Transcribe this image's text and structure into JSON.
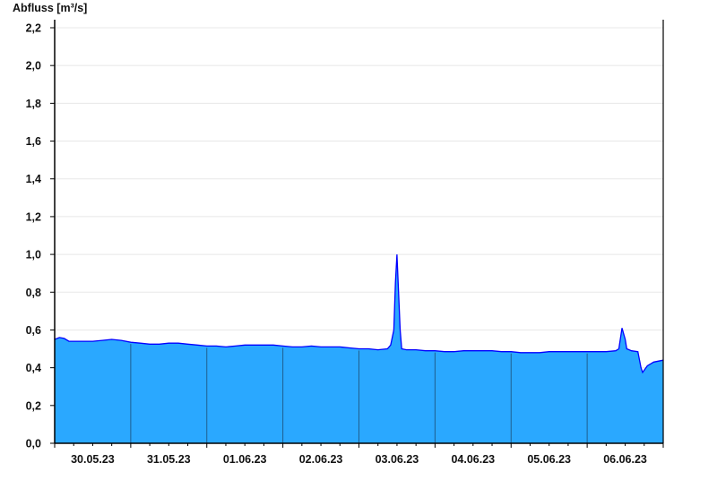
{
  "chart_data": {
    "type": "area",
    "ylabel": "Abfluss [m³/s]",
    "xlabel": "",
    "ylim": [
      0,
      2.2
    ],
    "yticks": [
      "0,0",
      "0,2",
      "0,4",
      "0,6",
      "0,8",
      "1,0",
      "1,2",
      "1,4",
      "1,6",
      "1,8",
      "2,0",
      "2,2"
    ],
    "xlim": [
      "30.05.23 00:00",
      "07.06.23 00:00"
    ],
    "xtick_labels": [
      "30.05.23",
      "31.05.23",
      "01.06.23",
      "02.06.23",
      "03.06.23",
      "04.06.23",
      "05.06.23",
      "06.06.23"
    ],
    "grid": true,
    "fill_color": "#2aa8ff",
    "line_color": "#0000ff",
    "series": [
      {
        "points": [
          [
            "30.05.23 00:00",
            0.55
          ],
          [
            "30.05.23 01:30",
            0.56
          ],
          [
            "30.05.23 03:00",
            0.555
          ],
          [
            "30.05.23 04:30",
            0.54
          ],
          [
            "30.05.23 06:00",
            0.54
          ],
          [
            "30.05.23 09:00",
            0.54
          ],
          [
            "30.05.23 12:00",
            0.54
          ],
          [
            "30.05.23 15:00",
            0.545
          ],
          [
            "30.05.23 18:00",
            0.55
          ],
          [
            "30.05.23 21:00",
            0.545
          ],
          [
            "31.05.23 00:00",
            0.535
          ],
          [
            "31.05.23 03:00",
            0.53
          ],
          [
            "31.05.23 06:00",
            0.525
          ],
          [
            "31.05.23 09:00",
            0.525
          ],
          [
            "31.05.23 12:00",
            0.53
          ],
          [
            "31.05.23 15:00",
            0.53
          ],
          [
            "31.05.23 18:00",
            0.525
          ],
          [
            "31.05.23 21:00",
            0.52
          ],
          [
            "01.06.23 00:00",
            0.515
          ],
          [
            "01.06.23 03:00",
            0.515
          ],
          [
            "01.06.23 06:00",
            0.51
          ],
          [
            "01.06.23 09:00",
            0.515
          ],
          [
            "01.06.23 12:00",
            0.52
          ],
          [
            "01.06.23 15:00",
            0.52
          ],
          [
            "01.06.23 18:00",
            0.52
          ],
          [
            "01.06.23 21:00",
            0.52
          ],
          [
            "02.06.23 00:00",
            0.515
          ],
          [
            "02.06.23 03:00",
            0.51
          ],
          [
            "02.06.23 06:00",
            0.51
          ],
          [
            "02.06.23 09:00",
            0.515
          ],
          [
            "02.06.23 12:00",
            0.51
          ],
          [
            "02.06.23 15:00",
            0.51
          ],
          [
            "02.06.23 18:00",
            0.51
          ],
          [
            "02.06.23 21:00",
            0.505
          ],
          [
            "03.06.23 00:00",
            0.5
          ],
          [
            "03.06.23 03:00",
            0.5
          ],
          [
            "03.06.23 06:00",
            0.495
          ],
          [
            "03.06.23 09:00",
            0.5
          ],
          [
            "03.06.23 10:00",
            0.52
          ],
          [
            "03.06.23 11:00",
            0.6
          ],
          [
            "03.06.23 11:30",
            0.85
          ],
          [
            "03.06.23 12:00",
            1.0
          ],
          [
            "03.06.23 12:30",
            0.8
          ],
          [
            "03.06.23 13:00",
            0.6
          ],
          [
            "03.06.23 13:30",
            0.5
          ],
          [
            "03.06.23 15:00",
            0.495
          ],
          [
            "03.06.23 18:00",
            0.495
          ],
          [
            "03.06.23 21:00",
            0.49
          ],
          [
            "04.06.23 00:00",
            0.49
          ],
          [
            "04.06.23 03:00",
            0.485
          ],
          [
            "04.06.23 06:00",
            0.485
          ],
          [
            "04.06.23 09:00",
            0.49
          ],
          [
            "04.06.23 12:00",
            0.49
          ],
          [
            "04.06.23 15:00",
            0.49
          ],
          [
            "04.06.23 18:00",
            0.49
          ],
          [
            "04.06.23 21:00",
            0.485
          ],
          [
            "05.06.23 00:00",
            0.485
          ],
          [
            "05.06.23 03:00",
            0.48
          ],
          [
            "05.06.23 06:00",
            0.48
          ],
          [
            "05.06.23 09:00",
            0.48
          ],
          [
            "05.06.23 12:00",
            0.485
          ],
          [
            "05.06.23 15:00",
            0.485
          ],
          [
            "05.06.23 18:00",
            0.485
          ],
          [
            "05.06.23 21:00",
            0.485
          ],
          [
            "06.06.23 00:00",
            0.485
          ],
          [
            "06.06.23 03:00",
            0.485
          ],
          [
            "06.06.23 06:00",
            0.485
          ],
          [
            "06.06.23 09:00",
            0.49
          ],
          [
            "06.06.23 10:00",
            0.5
          ],
          [
            "06.06.23 11:00",
            0.61
          ],
          [
            "06.06.23 12:00",
            0.55
          ],
          [
            "06.06.23 12:30",
            0.5
          ],
          [
            "06.06.23 14:00",
            0.49
          ],
          [
            "06.06.23 16:00",
            0.485
          ],
          [
            "06.06.23 17:00",
            0.4
          ],
          [
            "06.06.23 17:30",
            0.375
          ],
          [
            "06.06.23 19:00",
            0.41
          ],
          [
            "06.06.23 21:00",
            0.43
          ],
          [
            "07.06.23 00:00",
            0.44
          ]
        ]
      }
    ]
  }
}
